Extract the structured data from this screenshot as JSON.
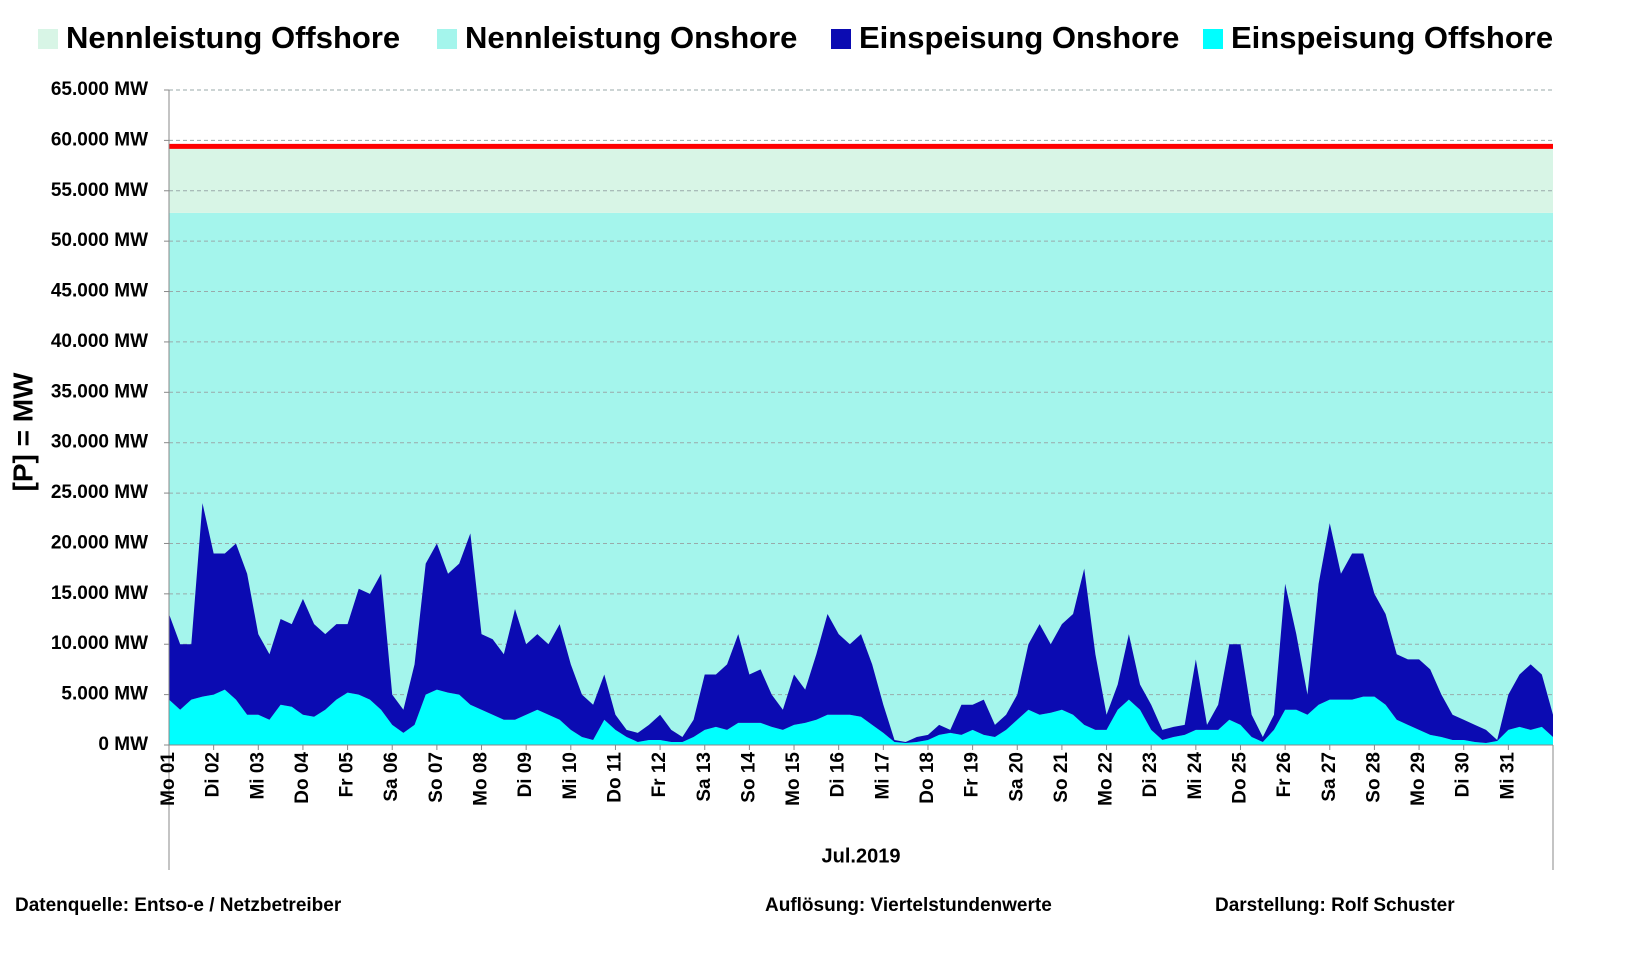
{
  "chart_data": {
    "type": "stacked_area",
    "ylabel": "[P] = MW",
    "xlabel": "Jul.2019",
    "footer": [
      "Datenquelle:  Entso-e  / Netzbetreiber",
      "Auflösung: Viertelstundenwerte",
      "Darstellung: Rolf Schuster"
    ],
    "capacity_series": [
      {
        "name": "Nennleistung Offshore",
        "color": "#d8f5e6",
        "value": 6600
      },
      {
        "name": "Nennleistung Onshore",
        "color": "#a4f5ec",
        "value": 52800
      }
    ],
    "reference_line": {
      "value": 59400,
      "color": "#ff0000"
    },
    "x": [
      0,
      0.25,
      0.5,
      0.75,
      1,
      1.25,
      1.5,
      1.75,
      2,
      2.25,
      2.5,
      2.75,
      3,
      3.25,
      3.5,
      3.75,
      4,
      4.25,
      4.5,
      4.75,
      5,
      5.25,
      5.5,
      5.75,
      6,
      6.25,
      6.5,
      6.75,
      7,
      7.25,
      7.5,
      7.75,
      8,
      8.25,
      8.5,
      8.75,
      9,
      9.25,
      9.5,
      9.75,
      10,
      10.25,
      10.5,
      10.75,
      11,
      11.25,
      11.5,
      11.75,
      12,
      12.25,
      12.5,
      12.75,
      13,
      13.25,
      13.5,
      13.75,
      14,
      14.25,
      14.5,
      14.75,
      15,
      15.25,
      15.5,
      15.75,
      16,
      16.25,
      16.5,
      16.75,
      17,
      17.25,
      17.5,
      17.75,
      18,
      18.25,
      18.5,
      18.75,
      19,
      19.25,
      19.5,
      19.75,
      20,
      20.25,
      20.5,
      20.75,
      21,
      21.25,
      21.5,
      21.75,
      22,
      22.25,
      22.5,
      22.75,
      23,
      23.25,
      23.5,
      23.75,
      24,
      24.25,
      24.5,
      24.75,
      25,
      25.25,
      25.5,
      25.75,
      26,
      26.25,
      26.5,
      26.75,
      27,
      27.25,
      27.5,
      27.75,
      28,
      28.25,
      28.5,
      28.75,
      29,
      29.25,
      29.5,
      29.75,
      30,
      30.25,
      30.5,
      30.75,
      31
    ],
    "series": [
      {
        "name": "Einspeisung Onshore",
        "color": "#0b0bb2",
        "values": [
          8500,
          6500,
          5500,
          19200,
          14000,
          13500,
          15500,
          14000,
          8000,
          6500,
          8500,
          8200,
          11500,
          9200,
          7500,
          7500,
          6800,
          10500,
          10500,
          13500,
          3000,
          2300,
          6000,
          13000,
          14500,
          11800,
          13000,
          17000,
          7500,
          7500,
          6500,
          11000,
          7000,
          7500,
          7000,
          9500,
          6500,
          4200,
          3500,
          4500,
          1500,
          700,
          900,
          1500,
          2500,
          1200,
          500,
          1700,
          5500,
          5200,
          6500,
          8800,
          4800,
          5300,
          3200,
          2000,
          5000,
          3300,
          6500,
          10000,
          8000,
          7000,
          8200,
          6000,
          2800,
          200,
          100,
          500,
          500,
          1000,
          300,
          3000,
          2500,
          3500,
          1200,
          1500,
          2500,
          6500,
          9000,
          6800,
          8500,
          10000,
          15500,
          7500,
          1500,
          2500,
          6500,
          2500,
          2500,
          1000,
          1000,
          1000,
          7000,
          500,
          2500,
          7500,
          8000,
          2200,
          500,
          1500,
          12500,
          7500,
          2000,
          12000,
          17500,
          12500,
          14500,
          14200,
          10200,
          9000,
          6500,
          6500,
          7000,
          6500,
          4200,
          2500,
          2000,
          1700,
          1300,
          100,
          3500,
          5200,
          6500,
          5200,
          2200
        ]
      },
      {
        "name": "Einspeisung Offshore",
        "color": "#00ffff",
        "values": [
          4500,
          3500,
          4500,
          4800,
          5000,
          5500,
          4500,
          3000,
          3000,
          2500,
          4000,
          3800,
          3000,
          2800,
          3500,
          4500,
          5200,
          5000,
          4500,
          3500,
          2000,
          1200,
          2000,
          5000,
          5500,
          5200,
          5000,
          4000,
          3500,
          3000,
          2500,
          2500,
          3000,
          3500,
          3000,
          2500,
          1500,
          800,
          500,
          2500,
          1500,
          800,
          300,
          500,
          500,
          300,
          300,
          800,
          1500,
          1800,
          1500,
          2200,
          2200,
          2200,
          1800,
          1500,
          2000,
          2200,
          2500,
          3000,
          3000,
          3000,
          2800,
          2000,
          1200,
          300,
          200,
          300,
          500,
          1000,
          1200,
          1000,
          1500,
          1000,
          800,
          1500,
          2500,
          3500,
          3000,
          3200,
          3500,
          3000,
          2000,
          1500,
          1500,
          3500,
          4500,
          3500,
          1500,
          500,
          800,
          1000,
          1500,
          1500,
          1500,
          2500,
          2000,
          800,
          300,
          1500,
          3500,
          3500,
          3000,
          4000,
          4500,
          4500,
          4500,
          4800,
          4800,
          4000,
          2500,
          2000,
          1500,
          1000,
          800,
          500,
          500,
          300,
          200,
          400,
          1500,
          1800,
          1500,
          1800,
          800
        ]
      }
    ],
    "xlim": [
      0,
      31
    ],
    "xticks": [
      {
        "value": 0,
        "label": "Mo 01"
      },
      {
        "value": 1,
        "label": "Di 02"
      },
      {
        "value": 2,
        "label": "Mi 03"
      },
      {
        "value": 3,
        "label": "Do 04"
      },
      {
        "value": 4,
        "label": "Fr 05"
      },
      {
        "value": 5,
        "label": "Sa 06"
      },
      {
        "value": 6,
        "label": "So 07"
      },
      {
        "value": 7,
        "label": "Mo 08"
      },
      {
        "value": 8,
        "label": "Di 09"
      },
      {
        "value": 9,
        "label": "Mi 10"
      },
      {
        "value": 10,
        "label": "Do 11"
      },
      {
        "value": 11,
        "label": "Fr 12"
      },
      {
        "value": 12,
        "label": "Sa 13"
      },
      {
        "value": 13,
        "label": "So 14"
      },
      {
        "value": 14,
        "label": "Mo 15"
      },
      {
        "value": 15,
        "label": "Di 16"
      },
      {
        "value": 16,
        "label": "Mi 17"
      },
      {
        "value": 17,
        "label": "Do 18"
      },
      {
        "value": 18,
        "label": "Fr 19"
      },
      {
        "value": 19,
        "label": "Sa 20"
      },
      {
        "value": 20,
        "label": "So 21"
      },
      {
        "value": 21,
        "label": "Mo 22"
      },
      {
        "value": 22,
        "label": "Di 23"
      },
      {
        "value": 23,
        "label": "Mi 24"
      },
      {
        "value": 24,
        "label": "Do 25"
      },
      {
        "value": 25,
        "label": "Fr 26"
      },
      {
        "value": 26,
        "label": "Sa 27"
      },
      {
        "value": 27,
        "label": "So 28"
      },
      {
        "value": 28,
        "label": "Mo 29"
      },
      {
        "value": 29,
        "label": "Di 30"
      },
      {
        "value": 30,
        "label": "Mi 31"
      }
    ],
    "ylim": [
      0,
      65000
    ],
    "yticks": [
      {
        "value": 0,
        "label": "0 MW"
      },
      {
        "value": 5000,
        "label": "5.000 MW"
      },
      {
        "value": 10000,
        "label": "10.000 MW"
      },
      {
        "value": 15000,
        "label": "15.000 MW"
      },
      {
        "value": 20000,
        "label": "20.000 MW"
      },
      {
        "value": 25000,
        "label": "25.000 MW"
      },
      {
        "value": 30000,
        "label": "30.000 MW"
      },
      {
        "value": 35000,
        "label": "35.000 MW"
      },
      {
        "value": 40000,
        "label": "40.000 MW"
      },
      {
        "value": 45000,
        "label": "45.000 MW"
      },
      {
        "value": 50000,
        "label": "50.000 MW"
      },
      {
        "value": 55000,
        "label": "55.000 MW"
      },
      {
        "value": 60000,
        "label": "60.000 MW"
      },
      {
        "value": 65000,
        "label": "65.000 MW"
      }
    ],
    "grid": true
  }
}
